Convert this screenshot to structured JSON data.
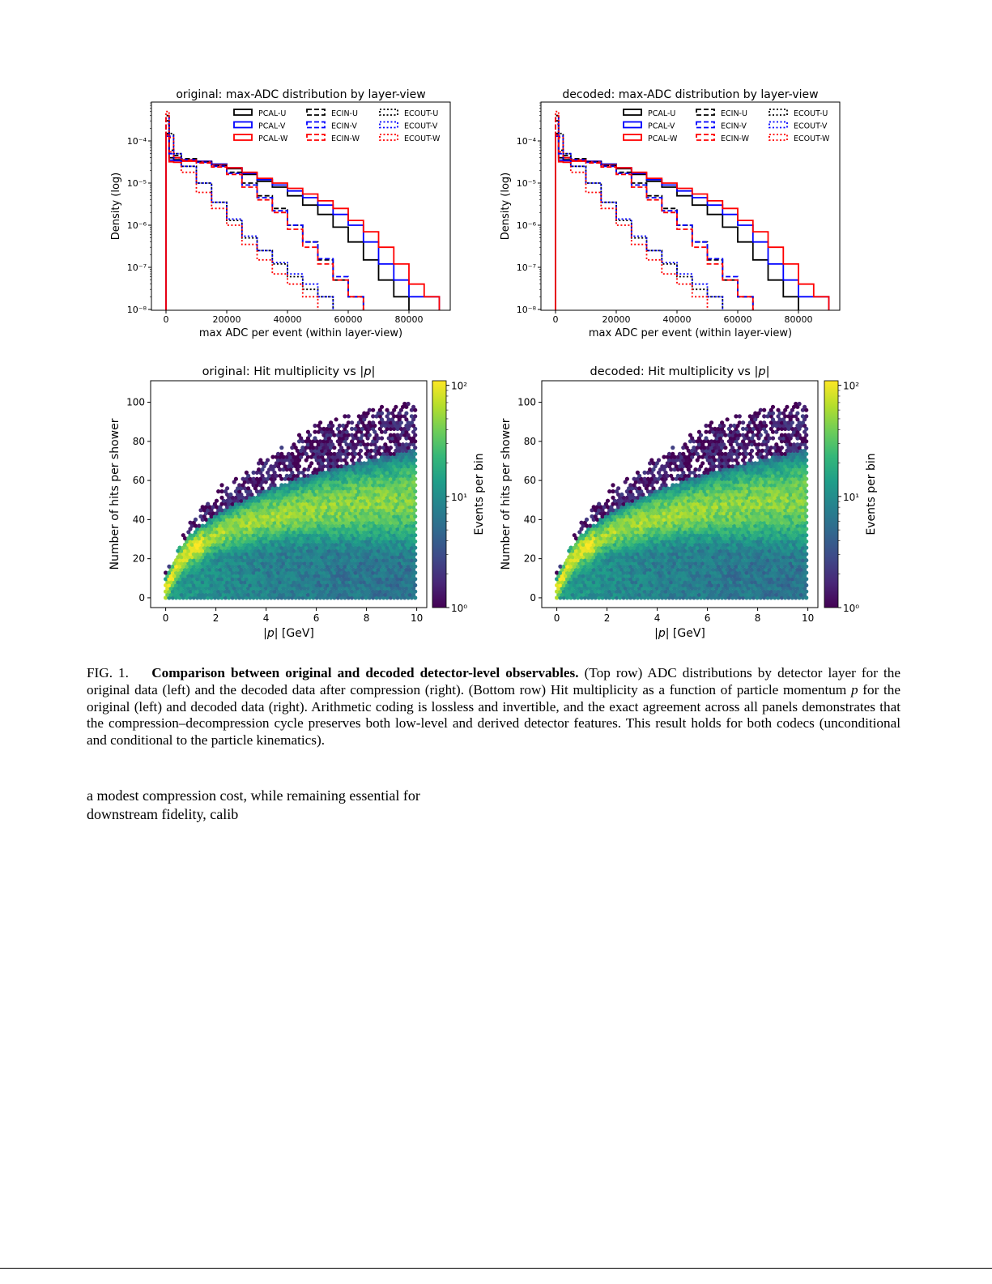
{
  "chart_data": [
    {
      "type": "line",
      "subtype": "step-histogram",
      "title": "original: max-ADC distribution by layer-view",
      "xlabel": "max ADC per event (within layer-view)",
      "ylabel": "Density (log)",
      "yscale": "log",
      "xlim": [
        -4800,
        93600
      ],
      "ylim": [
        1e-08,
        0.0008
      ],
      "xticks": [
        "0",
        "20000",
        "40000",
        "60000",
        "80000"
      ],
      "yticks": [
        "10⁻⁸",
        "10⁻⁷",
        "10⁻⁶",
        "10⁻⁵",
        "10⁻⁴"
      ],
      "legend": "top-right",
      "grid": false,
      "x": [
        0,
        1000,
        2500,
        5000,
        10000,
        15000,
        20000,
        25000,
        30000,
        35000,
        40000,
        45000,
        50000,
        55000,
        60000,
        65000,
        70000,
        75000,
        80000,
        85000,
        90000
      ],
      "series": [
        {
          "name": "PCAL-U",
          "color": "#000000",
          "style": "solid",
          "values": [
            0.00015,
            4e-05,
            3.6e-05,
            3.5e-05,
            3.2e-05,
            2.8e-05,
            2.2e-05,
            1.6e-05,
            1.1e-05,
            8e-06,
            5e-06,
            3e-06,
            1.8e-06,
            9e-07,
            4e-07,
            1.5e-07,
            5e-08,
            2e-08,
            null,
            null,
            null
          ]
        },
        {
          "name": "PCAL-V",
          "color": "#0000ff",
          "style": "solid",
          "values": [
            0.00013,
            3.5e-05,
            3.4e-05,
            3.5e-05,
            3.3e-05,
            2.8e-05,
            2.3e-05,
            1.7e-05,
            1.2e-05,
            9e-06,
            6.5e-06,
            4.5e-06,
            3e-06,
            1.8e-06,
            1e-06,
            4e-07,
            1.2e-07,
            5e-08,
            2e-08,
            2e-08,
            null
          ]
        },
        {
          "name": "PCAL-W",
          "color": "#ff0000",
          "style": "solid",
          "values": [
            0.00014,
            3.2e-05,
            3.1e-05,
            3.3e-05,
            3.2e-05,
            2.7e-05,
            2.3e-05,
            1.8e-05,
            1.3e-05,
            1e-05,
            7.5e-06,
            5.5e-06,
            3.8e-06,
            2.5e-06,
            1.3e-06,
            7e-07,
            3e-07,
            1.2e-07,
            4e-08,
            2e-08,
            null
          ]
        },
        {
          "name": "ECIN-U",
          "color": "#000000",
          "style": "dashed",
          "values": [
            0.0003,
            6e-05,
            4.5e-05,
            3.8e-05,
            3.2e-05,
            2.6e-05,
            1.8e-05,
            1e-05,
            5e-06,
            2.5e-06,
            1e-06,
            4e-07,
            1.5e-07,
            5e-08,
            2e-08,
            null,
            null,
            null,
            null,
            null,
            null
          ]
        },
        {
          "name": "ECIN-V",
          "color": "#0000ff",
          "style": "dashed",
          "values": [
            0.00025,
            5e-05,
            4e-05,
            3.6e-05,
            3.1e-05,
            2.5e-05,
            1.7e-05,
            9e-06,
            4.5e-06,
            2.2e-06,
            1e-06,
            4e-07,
            1.6e-07,
            6e-08,
            2e-08,
            null,
            null,
            null,
            null,
            null,
            null
          ]
        },
        {
          "name": "ECIN-W",
          "color": "#ff0000",
          "style": "dashed",
          "values": [
            0.0004,
            5.5e-05,
            4e-05,
            3.5e-05,
            3e-05,
            2.4e-05,
            1.6e-05,
            8e-06,
            4e-06,
            2e-06,
            8e-07,
            3e-07,
            1.2e-07,
            5e-08,
            2e-08,
            null,
            null,
            null,
            null,
            null,
            null
          ]
        },
        {
          "name": "ECOUT-U",
          "color": "#000000",
          "style": "dotted",
          "values": [
            0.0004,
            0.00015,
            5e-05,
            2.5e-05,
            1e-05,
            3.5e-06,
            1.3e-06,
            5e-07,
            2.5e-07,
            1.2e-07,
            6e-08,
            3e-08,
            2e-08,
            null,
            null,
            null,
            null,
            null,
            null,
            null,
            null
          ]
        },
        {
          "name": "ECOUT-V",
          "color": "#0000ff",
          "style": "dotted",
          "values": [
            0.00035,
            0.00013,
            5e-05,
            2.5e-05,
            1e-05,
            3.5e-06,
            1.4e-06,
            5.5e-07,
            2.5e-07,
            1.3e-07,
            7e-08,
            4e-08,
            2e-08,
            null,
            null,
            null,
            null,
            null,
            null,
            null,
            null
          ]
        },
        {
          "name": "ECOUT-W",
          "color": "#ff0000",
          "style": "dotted",
          "values": [
            0.0005,
            0.00012,
            4e-05,
            1.8e-05,
            6e-06,
            2.5e-06,
            1e-06,
            3.5e-07,
            1.5e-07,
            7e-08,
            4e-08,
            2e-08,
            null,
            null,
            null,
            null,
            null,
            null,
            null,
            null,
            null
          ]
        }
      ]
    },
    {
      "type": "line",
      "subtype": "step-histogram",
      "title": "decoded: max-ADC distribution by layer-view",
      "xlabel": "max ADC per event (within layer-view)",
      "ylabel": "Density (log)",
      "yscale": "log",
      "xlim": [
        -4800,
        93600
      ],
      "ylim": [
        1e-08,
        0.0008
      ],
      "xticks": [
        "0",
        "20000",
        "40000",
        "60000",
        "80000"
      ],
      "yticks": [
        "10⁻⁸",
        "10⁻⁷",
        "10⁻⁶",
        "10⁻⁵",
        "10⁻⁴"
      ],
      "legend": "top-right",
      "grid": false,
      "x": [
        0,
        1000,
        2500,
        5000,
        10000,
        15000,
        20000,
        25000,
        30000,
        35000,
        40000,
        45000,
        50000,
        55000,
        60000,
        65000,
        70000,
        75000,
        80000,
        85000,
        90000
      ],
      "series": [
        {
          "name": "PCAL-U",
          "color": "#000000",
          "style": "solid",
          "values": [
            0.00015,
            4e-05,
            3.6e-05,
            3.5e-05,
            3.2e-05,
            2.8e-05,
            2.2e-05,
            1.6e-05,
            1.1e-05,
            8e-06,
            5e-06,
            3e-06,
            1.8e-06,
            9e-07,
            4e-07,
            1.5e-07,
            5e-08,
            2e-08,
            null,
            null,
            null
          ]
        },
        {
          "name": "PCAL-V",
          "color": "#0000ff",
          "style": "solid",
          "values": [
            0.00013,
            3.5e-05,
            3.4e-05,
            3.5e-05,
            3.3e-05,
            2.8e-05,
            2.3e-05,
            1.7e-05,
            1.2e-05,
            9e-06,
            6.5e-06,
            4.5e-06,
            3e-06,
            1.8e-06,
            1e-06,
            4e-07,
            1.2e-07,
            5e-08,
            2e-08,
            2e-08,
            null
          ]
        },
        {
          "name": "PCAL-W",
          "color": "#ff0000",
          "style": "solid",
          "values": [
            0.00014,
            3.2e-05,
            3.1e-05,
            3.3e-05,
            3.2e-05,
            2.7e-05,
            2.3e-05,
            1.8e-05,
            1.3e-05,
            1e-05,
            7.5e-06,
            5.5e-06,
            3.8e-06,
            2.5e-06,
            1.3e-06,
            7e-07,
            3e-07,
            1.2e-07,
            4e-08,
            2e-08,
            null
          ]
        },
        {
          "name": "ECIN-U",
          "color": "#000000",
          "style": "dashed",
          "values": [
            0.0003,
            6e-05,
            4.5e-05,
            3.8e-05,
            3.2e-05,
            2.6e-05,
            1.8e-05,
            1e-05,
            5e-06,
            2.5e-06,
            1e-06,
            4e-07,
            1.5e-07,
            5e-08,
            2e-08,
            null,
            null,
            null,
            null,
            null,
            null
          ]
        },
        {
          "name": "ECIN-V",
          "color": "#0000ff",
          "style": "dashed",
          "values": [
            0.00025,
            5e-05,
            4e-05,
            3.6e-05,
            3.1e-05,
            2.5e-05,
            1.7e-05,
            9e-06,
            4.5e-06,
            2.2e-06,
            1e-06,
            4e-07,
            1.6e-07,
            6e-08,
            2e-08,
            null,
            null,
            null,
            null,
            null,
            null
          ]
        },
        {
          "name": "ECIN-W",
          "color": "#ff0000",
          "style": "dashed",
          "values": [
            0.0004,
            5.5e-05,
            4e-05,
            3.5e-05,
            3e-05,
            2.4e-05,
            1.6e-05,
            8e-06,
            4e-06,
            2e-06,
            8e-07,
            3e-07,
            1.2e-07,
            5e-08,
            2e-08,
            null,
            null,
            null,
            null,
            null,
            null
          ]
        },
        {
          "name": "ECOUT-U",
          "color": "#000000",
          "style": "dotted",
          "values": [
            0.0004,
            0.00015,
            5e-05,
            2.5e-05,
            1e-05,
            3.5e-06,
            1.3e-06,
            5e-07,
            2.5e-07,
            1.2e-07,
            6e-08,
            3e-08,
            2e-08,
            null,
            null,
            null,
            null,
            null,
            null,
            null,
            null
          ]
        },
        {
          "name": "ECOUT-V",
          "color": "#0000ff",
          "style": "dotted",
          "values": [
            0.00035,
            0.00013,
            5e-05,
            2.5e-05,
            1e-05,
            3.5e-06,
            1.4e-06,
            5.5e-07,
            2.5e-07,
            1.3e-07,
            7e-08,
            4e-08,
            2e-08,
            null,
            null,
            null,
            null,
            null,
            null,
            null,
            null
          ]
        },
        {
          "name": "ECOUT-W",
          "color": "#ff0000",
          "style": "dotted",
          "values": [
            0.0005,
            0.00012,
            4e-05,
            1.8e-05,
            6e-06,
            2.5e-06,
            1e-06,
            3.5e-07,
            1.5e-07,
            7e-08,
            4e-08,
            2e-08,
            null,
            null,
            null,
            null,
            null,
            null,
            null,
            null,
            null
          ]
        }
      ]
    },
    {
      "type": "heatmap",
      "subtype": "hexbin",
      "title_prefix": "original: Hit multiplicity vs |",
      "title_var": "p",
      "title_suffix": "|",
      "xlabel_prefix": "|",
      "xlabel_var": "p",
      "xlabel_suffix": "| [GeV]",
      "ylabel": "Number of hits per shower",
      "xlim": [
        -0.6,
        10.4
      ],
      "ylim": [
        -5,
        111
      ],
      "xticks": [
        "0",
        "2",
        "4",
        "6",
        "8",
        "10"
      ],
      "yticks": [
        "0",
        "20",
        "40",
        "60",
        "80",
        "100"
      ],
      "colorbar": {
        "label": "Events per bin",
        "scale": "log",
        "range": [
          1,
          110
        ],
        "ticks": [
          "10⁰",
          "10¹",
          "10²"
        ],
        "colormap": "viridis"
      },
      "ridge": {
        "p": [
          0,
          0.5,
          1,
          2,
          3,
          4,
          6,
          8,
          10
        ],
        "hits": [
          4,
          18,
          25,
          33,
          38,
          42,
          47,
          50,
          52
        ]
      },
      "max_hits_edge": {
        "p": [
          0,
          1,
          2,
          4,
          6,
          8,
          10
        ],
        "hits": [
          10,
          36,
          50,
          68,
          85,
          92,
          95
        ]
      }
    },
    {
      "type": "heatmap",
      "subtype": "hexbin",
      "title_prefix": "decoded:  Hit multiplicity vs |",
      "title_var": "p",
      "title_suffix": "|",
      "xlabel_prefix": "|",
      "xlabel_var": "p",
      "xlabel_suffix": "| [GeV]",
      "ylabel": "Number of hits per shower",
      "xlim": [
        -0.6,
        10.4
      ],
      "ylim": [
        -5,
        111
      ],
      "xticks": [
        "0",
        "2",
        "4",
        "6",
        "8",
        "10"
      ],
      "yticks": [
        "0",
        "20",
        "40",
        "60",
        "80",
        "100"
      ],
      "colorbar": {
        "label": "Events per bin",
        "scale": "log",
        "range": [
          1,
          110
        ],
        "ticks": [
          "10⁰",
          "10¹",
          "10²"
        ],
        "colormap": "viridis"
      },
      "ridge": {
        "p": [
          0,
          0.5,
          1,
          2,
          3,
          4,
          6,
          8,
          10
        ],
        "hits": [
          4,
          18,
          25,
          33,
          38,
          42,
          47,
          50,
          52
        ]
      },
      "max_hits_edge": {
        "p": [
          0,
          1,
          2,
          4,
          6,
          8,
          10
        ],
        "hits": [
          10,
          36,
          50,
          68,
          85,
          92,
          95
        ]
      }
    }
  ],
  "caption": {
    "label": "FIG. 1.",
    "bold_title": "Comparison between original and decoded detector-level observables.",
    "text_1": " (Top row) ADC distributions by detector layer for the original data (left) and the decoded data after compression (right). (Bottom row) Hit multiplicity as a function of particle momentum ",
    "var": "p",
    "text_2": " for the original (left) and decoded data (right). Arithmetic coding is lossless and invertible, and the exact agreement across all panels demonstrates that the compression–decompression cycle preserves both low-level and derived detector features. This result holds for both codecs (unconditional and conditional to the particle kinematics)."
  },
  "body": {
    "line_1": "a modest compression cost, while remaining essential for",
    "line_2": "downstream fidelity, calib"
  }
}
